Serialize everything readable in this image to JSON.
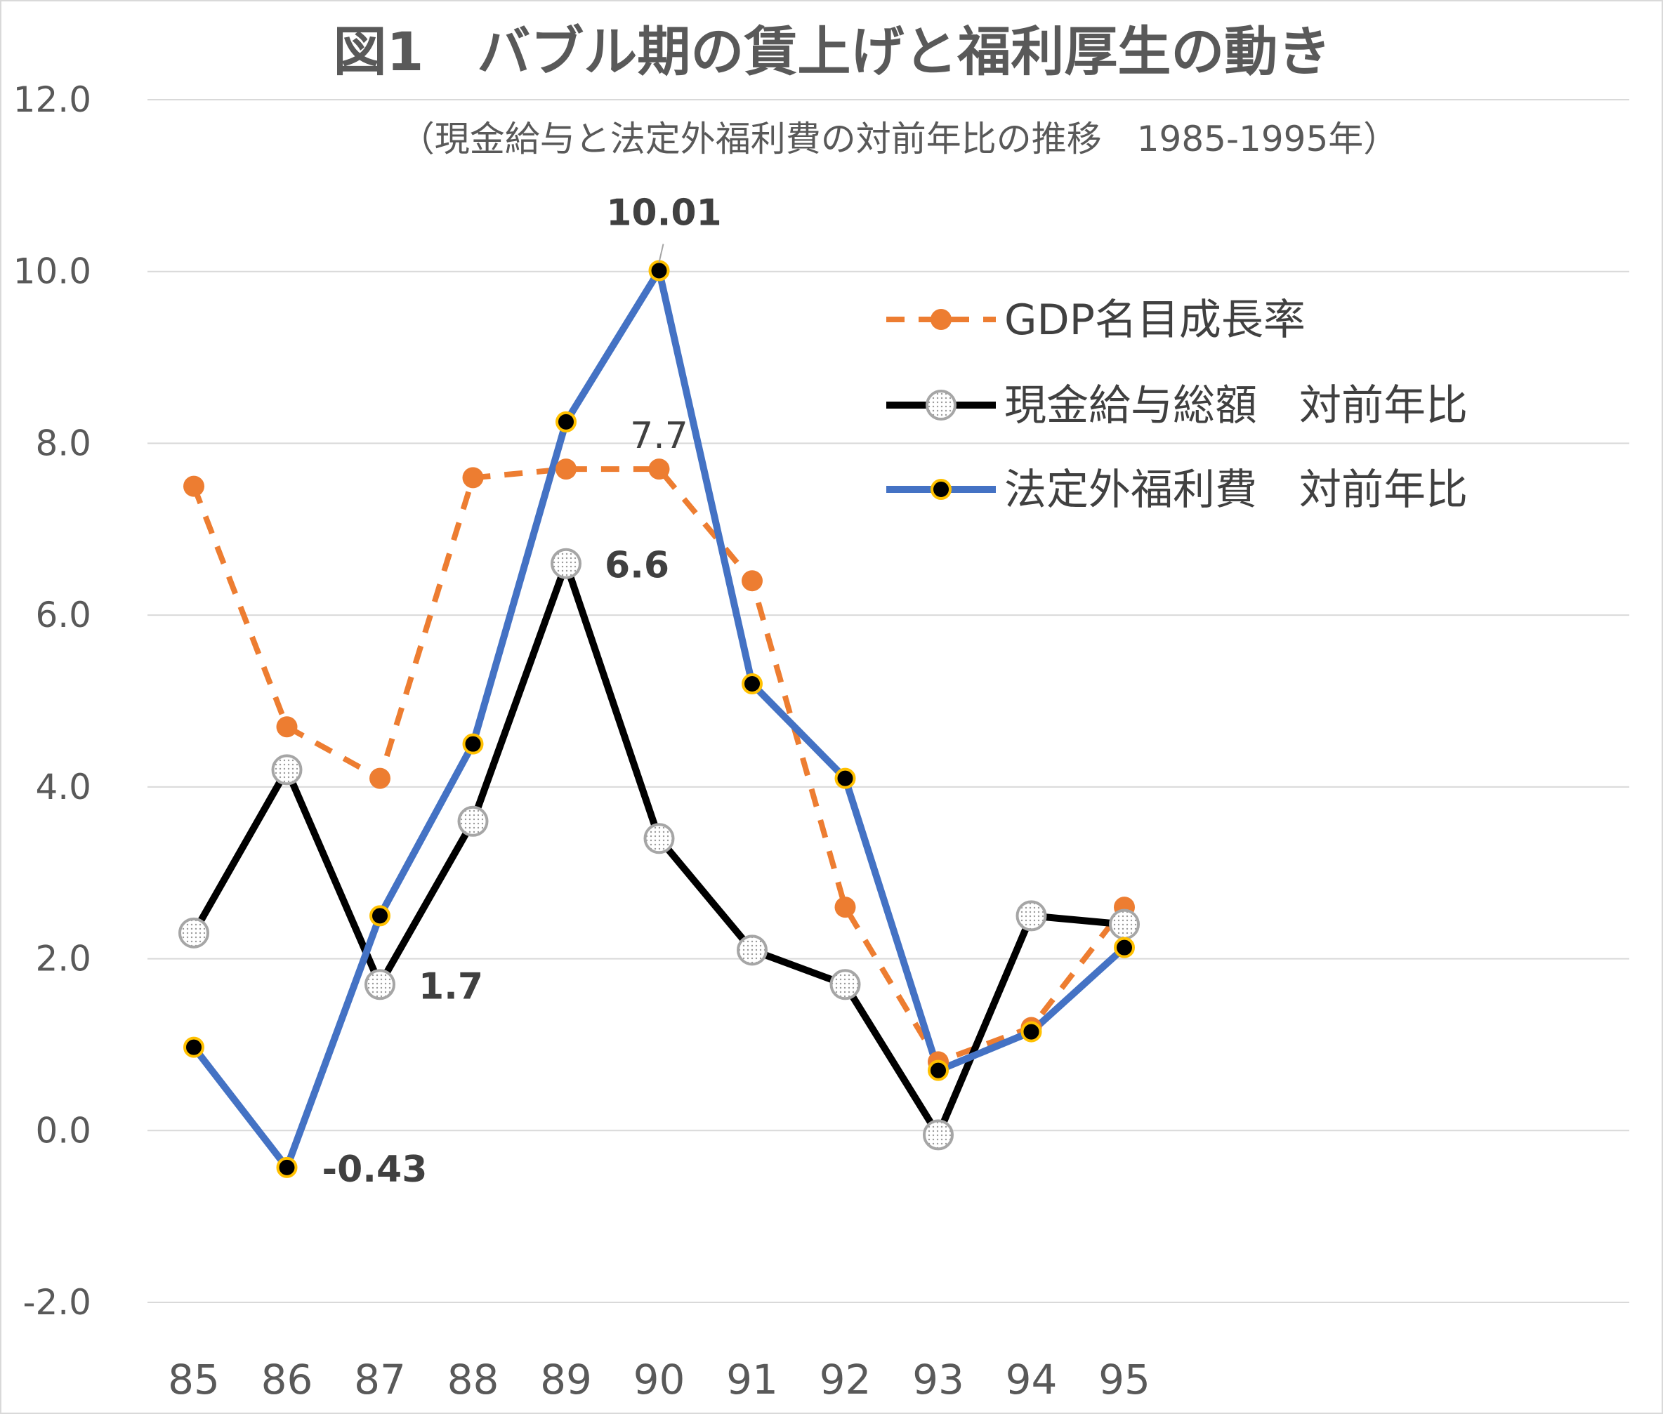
{
  "chart_data": {
    "type": "line",
    "title": "図1　バブル期の賃上げと福利厚生の動き",
    "subtitle": "（現金給与と法定外福利費の対前年比の推移　1985-1995年）",
    "categories": [
      "85",
      "86",
      "87",
      "88",
      "89",
      "90",
      "91",
      "92",
      "93",
      "94",
      "95"
    ],
    "ylim": [
      -2.0,
      12.0
    ],
    "yticks": [
      "-2.0",
      "0.0",
      "2.0",
      "4.0",
      "6.0",
      "8.0",
      "10.0",
      "12.0"
    ],
    "grid": true,
    "legend_position": "top-right",
    "series": [
      {
        "name": "GDP名目成長率",
        "color": "#ed7d31",
        "dashed": true,
        "marker": "filled-circle",
        "values": [
          7.5,
          4.7,
          4.1,
          7.6,
          7.7,
          7.7,
          6.4,
          2.6,
          0.8,
          1.2,
          2.6
        ]
      },
      {
        "name": "現金給与総額　対前年比",
        "color": "#000000",
        "dashed": false,
        "marker": "hollow-dotted-circle",
        "values": [
          2.3,
          4.2,
          1.7,
          3.6,
          6.6,
          3.4,
          2.1,
          1.7,
          -0.05,
          2.5,
          2.4
        ]
      },
      {
        "name": "法定外福利費　対前年比",
        "color": "#4472c4",
        "dashed": false,
        "marker": "black-dot-gold-ring",
        "values": [
          0.97,
          -0.43,
          2.5,
          4.5,
          8.25,
          10.01,
          5.2,
          4.1,
          0.7,
          1.15,
          2.13
        ]
      }
    ],
    "annotations": [
      {
        "text": "10.01",
        "series": 2,
        "index": 5,
        "bold": true
      },
      {
        "text": "7.7",
        "series": 0,
        "index": 5,
        "bold": false
      },
      {
        "text": "6.6",
        "series": 1,
        "index": 4,
        "bold": true
      },
      {
        "text": "1.7",
        "series": 1,
        "index": 2,
        "bold": true
      },
      {
        "text": "-0.43",
        "series": 2,
        "index": 1,
        "bold": true
      }
    ]
  }
}
